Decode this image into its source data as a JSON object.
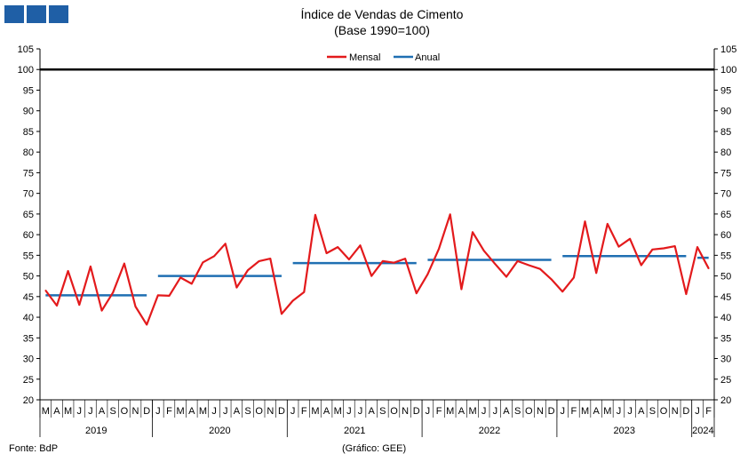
{
  "header": {
    "logo_color": "#1f5fa6",
    "title": "Índice de Vendas de Cimento",
    "subtitle": "(Base 1990=100)"
  },
  "footer": {
    "source": "Fonte: BdP",
    "credit": "(Gráfico: GEE)"
  },
  "chart_data": {
    "type": "line",
    "title": "Índice de Vendas de Cimento",
    "subtitle": "(Base 1990=100)",
    "ylim": [
      20,
      105
    ],
    "y_ticks": [
      20,
      25,
      30,
      35,
      40,
      45,
      50,
      55,
      60,
      65,
      70,
      75,
      80,
      85,
      90,
      95,
      100,
      105
    ],
    "y_axis_both_sides": true,
    "grid": false,
    "legend_position": "top-center",
    "month_labels": [
      "M",
      "A",
      "M",
      "J",
      "J",
      "A",
      "S",
      "O",
      "N",
      "D",
      "J",
      "F",
      "M",
      "A",
      "M",
      "J",
      "J",
      "A",
      "S",
      "O",
      "N",
      "D",
      "J",
      "F",
      "M",
      "A",
      "M",
      "J",
      "J",
      "A",
      "S",
      "O",
      "N",
      "D",
      "J",
      "F",
      "M",
      "A",
      "M",
      "J",
      "J",
      "A",
      "S",
      "O",
      "N",
      "D",
      "J",
      "F",
      "M",
      "A",
      "M",
      "J",
      "J",
      "A",
      "S",
      "O",
      "N",
      "D",
      "J",
      "F"
    ],
    "years": [
      {
        "label": "2019",
        "start": 0,
        "end": 10
      },
      {
        "label": "2020",
        "start": 10,
        "end": 22
      },
      {
        "label": "2021",
        "start": 22,
        "end": 34
      },
      {
        "label": "2022",
        "start": 34,
        "end": 46
      },
      {
        "label": "2023",
        "start": 46,
        "end": 58
      },
      {
        "label": "2024",
        "start": 58,
        "end": 60
      }
    ],
    "series": [
      {
        "name": "Mensal",
        "color": "#e31a1c",
        "values": [
          46.5,
          42.8,
          51.2,
          43.0,
          52.3,
          41.6,
          46.0,
          53.0,
          42.6,
          38.2,
          45.3,
          45.2,
          49.6,
          48.1,
          53.3,
          54.8,
          57.8,
          47.2,
          51.4,
          53.6,
          54.2,
          40.8,
          44.0,
          46.1,
          64.8,
          55.5,
          57.0,
          54.0,
          57.4,
          50.0,
          53.6,
          53.2,
          54.2,
          45.8,
          50.4,
          56.6,
          64.9,
          46.8,
          60.6,
          56.1,
          52.9,
          49.8,
          53.6,
          52.6,
          51.7,
          49.2,
          46.2,
          49.6,
          63.2,
          50.7,
          62.6,
          57.1,
          59.0,
          52.6,
          56.4,
          56.7,
          57.2,
          45.6,
          57.0,
          51.8
        ]
      },
      {
        "name": "Anual",
        "color": "#1f6fb2",
        "segments": [
          {
            "start": 0,
            "end": 10,
            "value": 45.3
          },
          {
            "start": 10,
            "end": 22,
            "value": 50.0
          },
          {
            "start": 22,
            "end": 34,
            "value": 53.1
          },
          {
            "start": 34,
            "end": 46,
            "value": 53.9
          },
          {
            "start": 46,
            "end": 58,
            "value": 54.8
          },
          {
            "start": 58,
            "end": 60,
            "value": 54.4
          }
        ]
      }
    ],
    "reference_line": {
      "value": 100,
      "color": "#000000"
    }
  }
}
